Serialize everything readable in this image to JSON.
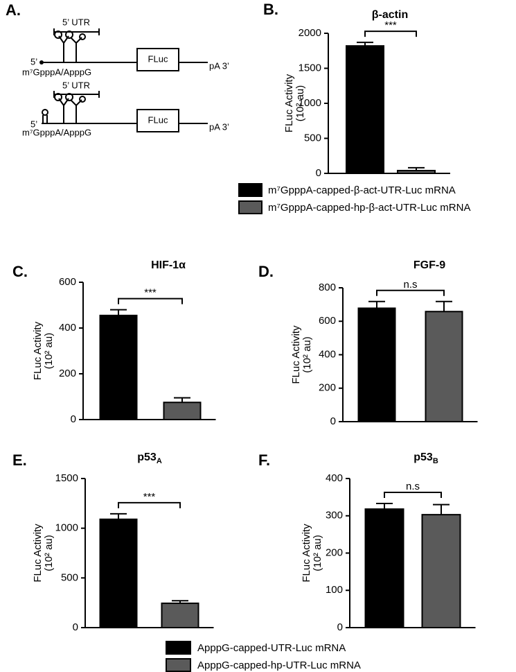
{
  "diagram": {
    "label": "A.",
    "constructs": [
      {
        "utr": "5’ UTR",
        "cap_end": "5’",
        "cap": "m⁷GpppA/ApppG",
        "orf": "FLuc",
        "tail": "pA 3’"
      },
      {
        "utr": "5’ UTR",
        "cap_end": "5’",
        "cap": "m⁷GpppA/ApppG",
        "orf": "FLuc",
        "tail": "pA 3’"
      }
    ]
  },
  "chart_data": [
    {
      "type": "bar",
      "panel": "B.",
      "title": "β-actin",
      "ylabel": [
        "FLuc Activity",
        "(10² au)"
      ],
      "values": [
        1820,
        40
      ],
      "errors": [
        50,
        40
      ],
      "colors": [
        "#000000",
        "#5a5a5a"
      ],
      "ylim": [
        0,
        2000
      ],
      "yticks": [
        0,
        500,
        1000,
        1500,
        2000
      ],
      "significance": "***",
      "legend": [
        "m⁷GpppA-capped-β-act-UTR-Luc mRNA",
        "m⁷GpppA-capped-hp-β-act-UTR-Luc mRNA"
      ]
    },
    {
      "type": "bar",
      "panel": "C.",
      "title": "HIF-1α",
      "ylabel": [
        "FLuc Activity",
        "(10² au)"
      ],
      "values": [
        455,
        75
      ],
      "errors": [
        25,
        20
      ],
      "colors": [
        "#000000",
        "#5a5a5a"
      ],
      "ylim": [
        0,
        600
      ],
      "yticks": [
        0,
        200,
        400,
        600
      ],
      "significance": "***"
    },
    {
      "type": "bar",
      "panel": "D.",
      "title": "FGF-9",
      "ylabel": [
        "FLuc Activity",
        "(10² au)"
      ],
      "values": [
        678,
        658
      ],
      "errors": [
        40,
        60
      ],
      "colors": [
        "#000000",
        "#5a5a5a"
      ],
      "ylim": [
        0,
        800
      ],
      "yticks": [
        0,
        200,
        400,
        600,
        800
      ],
      "significance": "n.s"
    },
    {
      "type": "bar",
      "panel": "E.",
      "title": "p53",
      "title_sub": "A",
      "ylabel": [
        "FLuc Activity",
        "(10² au)"
      ],
      "values": [
        1090,
        245
      ],
      "errors": [
        55,
        25
      ],
      "colors": [
        "#000000",
        "#5a5a5a"
      ],
      "ylim": [
        0,
        1500
      ],
      "yticks": [
        0,
        500,
        1000,
        1500
      ],
      "significance": "***"
    },
    {
      "type": "bar",
      "panel": "F.",
      "title": "p53",
      "title_sub": "B",
      "ylabel": [
        "FLuc Activity",
        "(10² au)"
      ],
      "values": [
        318,
        303
      ],
      "errors": [
        15,
        27
      ],
      "colors": [
        "#000000",
        "#5a5a5a"
      ],
      "ylim": [
        0,
        400
      ],
      "yticks": [
        0,
        100,
        200,
        300,
        400
      ],
      "significance": "n.s"
    }
  ],
  "legend": {
    "entries": [
      {
        "name": "ApppG-capped-UTR-Luc mRNA",
        "color": "#000000"
      },
      {
        "name": "ApppG-capped-hp-UTR-Luc mRNA",
        "color": "#5a5a5a"
      }
    ]
  }
}
